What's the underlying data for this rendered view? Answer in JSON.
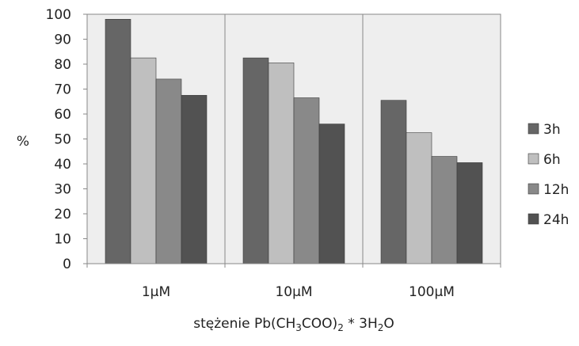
{
  "chart_data": {
    "type": "bar",
    "title": "",
    "ylabel": "%",
    "xlabel": "stężenie Pb(CH3COO)2 * 3H2O",
    "xlabel_parts": [
      {
        "text": "stężenie Pb(CH",
        "sub": false
      },
      {
        "text": "3",
        "sub": true
      },
      {
        "text": "COO)",
        "sub": false
      },
      {
        "text": "2",
        "sub": true
      },
      {
        "text": " * 3H",
        "sub": false
      },
      {
        "text": "2",
        "sub": true
      },
      {
        "text": "O",
        "sub": false
      }
    ],
    "categories": [
      "1μM",
      "10μM",
      "100μM"
    ],
    "ylim": [
      0,
      100
    ],
    "yticks": [
      0,
      10,
      20,
      30,
      40,
      50,
      60,
      70,
      80,
      90,
      100
    ],
    "grid": false,
    "legend_position": "right",
    "plot_background": "#eeeeee",
    "series": [
      {
        "name": "3h",
        "color": "#666666",
        "values": [
          98,
          82.5,
          65.5
        ]
      },
      {
        "name": "6h",
        "color": "#bfbfbf",
        "values": [
          82.5,
          80.5,
          52.5
        ]
      },
      {
        "name": "12h",
        "color": "#898989",
        "values": [
          74,
          66.5,
          43
        ]
      },
      {
        "name": "24h",
        "color": "#525252",
        "values": [
          67.5,
          56,
          40.5
        ]
      }
    ]
  }
}
